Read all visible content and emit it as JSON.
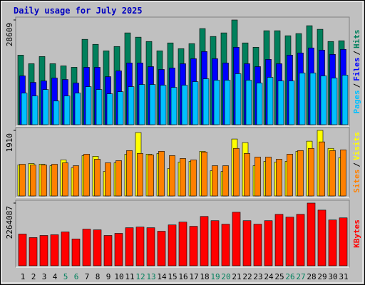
{
  "chart_data": [
    {
      "type": "bar",
      "title": "Daily usage for July 2025",
      "ylim": [
        0,
        28609
      ],
      "yticks": [
        28609
      ],
      "legend_separator": "/",
      "series": [
        {
          "name": "Hits",
          "color": "#00805c",
          "values": [
            19006,
            16660,
            18620,
            16660,
            16070,
            15680,
            23320,
            21950,
            20180,
            21360,
            25080,
            23910,
            22730,
            20180,
            22340,
            20770,
            22140,
            26260,
            24100,
            25080,
            28609,
            22340,
            21160,
            25670,
            25670,
            24300,
            24890,
            27040,
            26060,
            22730,
            22930
          ]
        },
        {
          "name": "Files",
          "color": "#0000ff",
          "values": [
            13330,
            11560,
            11950,
            12740,
            12350,
            11370,
            15680,
            15680,
            13130,
            14700,
            16850,
            16850,
            15870,
            15090,
            15480,
            16660,
            18030,
            19990,
            18030,
            16850,
            21160,
            16660,
            15870,
            17840,
            16660,
            19010,
            19600,
            20970,
            20380,
            19210,
            20580
          ]
        },
        {
          "name": "Pages",
          "color": "#00c0ff",
          "values": [
            8620,
            7840,
            9600,
            6470,
            7840,
            8620,
            10390,
            9600,
            8430,
            9020,
            10390,
            10980,
            10980,
            10780,
            10190,
            10780,
            11760,
            12540,
            12150,
            12150,
            13920,
            12150,
            11370,
            12940,
            11960,
            11960,
            14110,
            14110,
            13330,
            12740,
            13520
          ]
        }
      ]
    },
    {
      "type": "bar",
      "ylim": [
        0,
        1910
      ],
      "yticks": [
        1910
      ],
      "legend_separator": "/",
      "series": [
        {
          "name": "Visits",
          "color": "#ffff00",
          "values": [
            903,
            945,
            924,
            882,
            1050,
            819,
            1176,
            1155,
            714,
            966,
            1218,
            1848,
            1218,
            1239,
            798,
            987,
            1008,
            1302,
            735,
            714,
            1659,
            1554,
            882,
            1008,
            987,
            1008,
            1302,
            1596,
            1910,
            1386,
            1113
          ]
        },
        {
          "name": "Sites",
          "color": "#ff8000",
          "values": [
            924,
            903,
            903,
            924,
            966,
            882,
            1218,
            1071,
            966,
            1029,
            1323,
            1239,
            1197,
            1302,
            1176,
            1092,
            1050,
            1281,
            882,
            882,
            1386,
            1239,
            1134,
            1134,
            1071,
            1218,
            1323,
            1386,
            1575,
            1323,
            1344
          ]
        }
      ]
    },
    {
      "type": "bar",
      "ylim": [
        0,
        2264087
      ],
      "yticks": [
        2264087
      ],
      "categories": [
        1,
        2,
        3,
        4,
        5,
        6,
        7,
        8,
        9,
        10,
        11,
        12,
        13,
        14,
        15,
        16,
        17,
        18,
        19,
        20,
        21,
        22,
        23,
        24,
        25,
        26,
        27,
        28,
        29,
        30,
        31
      ],
      "category_colors": [
        "#000000",
        "#000000",
        "#000000",
        "#000000",
        "#00805c",
        "#00805c",
        "#000000",
        "#000000",
        "#000000",
        "#000000",
        "#000000",
        "#00805c",
        "#00805c",
        "#000000",
        "#000000",
        "#000000",
        "#000000",
        "#000000",
        "#00805c",
        "#00805c",
        "#000000",
        "#000000",
        "#000000",
        "#000000",
        "#000000",
        "#00805c",
        "#00805c",
        "#000000",
        "#000000",
        "#000000",
        "#000000"
      ],
      "series": [
        {
          "name": "KBytes",
          "color": "#ff0000",
          "values": [
            1144800,
            1017600,
            1093900,
            1119300,
            1221100,
            966700,
            1322800,
            1297400,
            1093900,
            1170200,
            1373700,
            1399100,
            1373700,
            1246500,
            1475500,
            1577200,
            1424600,
            1780700,
            1628100,
            1500900,
            1933400,
            1628100,
            1500900,
            1628100,
            1857000,
            1755300,
            1857000,
            2264087,
            2009700,
            1653500,
            1729800
          ]
        }
      ]
    }
  ]
}
